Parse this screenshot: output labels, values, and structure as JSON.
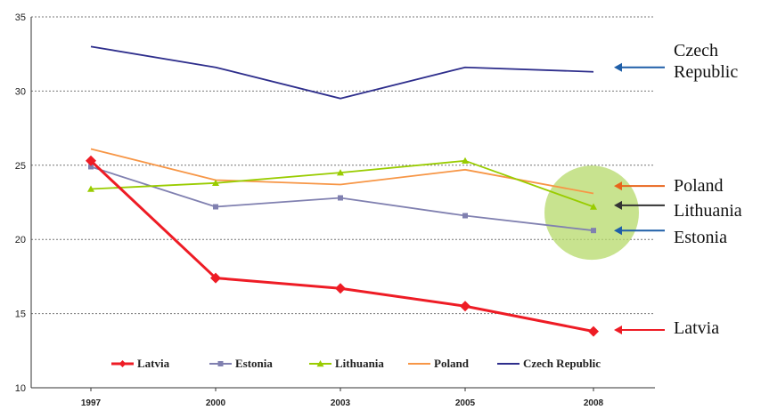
{
  "chart_data": {
    "type": "line",
    "x": [
      "1997",
      "2000",
      "2003",
      "2005",
      "2008"
    ],
    "ylim": [
      10,
      35
    ],
    "yticks": [
      10,
      15,
      20,
      25,
      30,
      35
    ],
    "grid": true,
    "legend_position": "bottom",
    "series": [
      {
        "name": "Latvia",
        "values": [
          25.3,
          17.4,
          16.7,
          15.5,
          13.8
        ],
        "color": "#ee1c25",
        "marker": "diamond"
      },
      {
        "name": "Estonia",
        "values": [
          24.9,
          22.2,
          22.8,
          21.6,
          20.6
        ],
        "color": "#8080b0",
        "marker": "square"
      },
      {
        "name": "Lithuania",
        "values": [
          23.4,
          23.8,
          24.5,
          25.3,
          22.2
        ],
        "color": "#99cc00",
        "marker": "triangle"
      },
      {
        "name": "Poland",
        "values": [
          26.1,
          24.0,
          23.7,
          24.7,
          23.1
        ],
        "color": "#f79646",
        "marker": "none"
      },
      {
        "name": "Czech Republic",
        "values": [
          33.0,
          31.6,
          29.5,
          31.6,
          31.3
        ],
        "color": "#2e2e8c",
        "marker": "none"
      }
    ],
    "annotations": [
      {
        "lines": [
          "Czech",
          "Republic"
        ],
        "value": 31.6,
        "arrow_color": "#1f5fa8"
      },
      {
        "lines": [
          "Poland"
        ],
        "value": 23.6,
        "arrow_color": "#e8641b"
      },
      {
        "lines": [
          "Lithuania"
        ],
        "value": 22.3,
        "arrow_color": "#333333"
      },
      {
        "lines": [
          "Estonia"
        ],
        "value": 20.6,
        "arrow_color": "#1f5fa8"
      },
      {
        "lines": [
          "Latvia"
        ],
        "value": 13.9,
        "arrow_color": "#ee1c25"
      }
    ],
    "highlight": {
      "x": "2008",
      "y": 21.8,
      "color": "#b5d96a"
    }
  }
}
